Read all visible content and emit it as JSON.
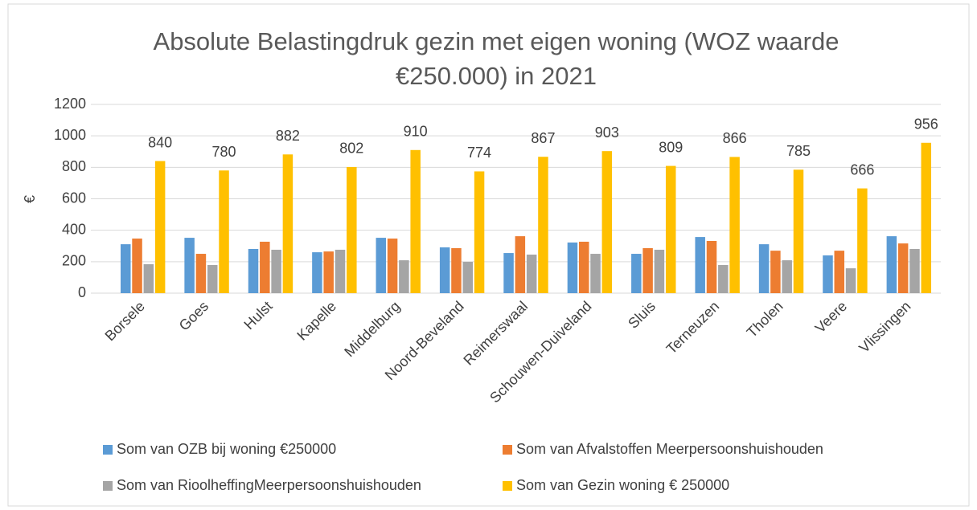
{
  "chart_data": {
    "type": "bar",
    "title": "Absolute Belastingdruk gezin met eigen woning (WOZ waarde €250.000) in 2021",
    "ylabel": "€",
    "categories": [
      "Borsele",
      "Goes",
      "Hulst",
      "Kapelle",
      "Middelburg",
      "Noord-Beveland",
      "Reimerswaal",
      "Schouwen-Duiveland",
      "Sluis",
      "Terneuzen",
      "Tholen",
      "Veere",
      "Vlissingen"
    ],
    "series": [
      {
        "name": "Som van OZB bij woning €250000",
        "color": "#5b9bd5",
        "values": [
          311,
          352,
          281,
          260,
          352,
          291,
          255,
          322,
          250,
          357,
          311,
          240,
          362
        ]
      },
      {
        "name": "Som van Afvalstoffen Meerpersoonshuishouden",
        "color": "#ed7d31",
        "values": [
          347,
          250,
          327,
          265,
          347,
          286,
          362,
          327,
          286,
          332,
          270,
          270,
          316
        ]
      },
      {
        "name": "Som van RioolheffingMeerpersoonshuishouden",
        "color": "#a5a5a5",
        "values": [
          184,
          179,
          276,
          276,
          209,
          199,
          245,
          250,
          276,
          179,
          209,
          158,
          281
        ]
      },
      {
        "name": "Som van Gezin woning € 250000",
        "color": "#ffc000",
        "values": [
          840,
          780,
          882,
          802,
          910,
          774,
          867,
          903,
          809,
          866,
          785,
          666,
          956
        ],
        "data_labels": true
      }
    ],
    "ylim": [
      0,
      1200
    ],
    "yticks": [
      0,
      200,
      400,
      600,
      800,
      1000,
      1200
    ],
    "grid": true,
    "legend": "bottom"
  }
}
